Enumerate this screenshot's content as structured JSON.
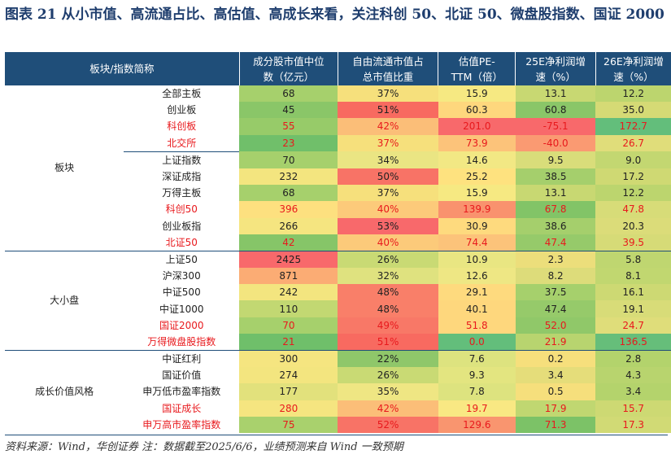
{
  "title": "图表 21   从小市值、高流通占比、高估值、高成长来看，关注科创 50、北证 50、微盘股指数、国证 2000",
  "headers": {
    "name": "板块/指数简称",
    "c1_l1": "成分股市值中位",
    "c1_l2": "数（亿元）",
    "c2_l1": "自由流通市值占",
    "c2_l2": "总市值比重",
    "c3_l1": "估值PE-",
    "c3_l2": "TTM（倍）",
    "c4_l1": "25E净利润增",
    "c4_l2": "速（%）",
    "c5_l1": "26E净利润增",
    "c5_l2": "速（%）"
  },
  "groups": [
    {
      "label": "板块",
      "start": 0,
      "span": 10
    },
    {
      "label": "大小盘",
      "start": 10,
      "span": 6
    },
    {
      "label": "成长价值风格",
      "start": 16,
      "span": 5
    }
  ],
  "rows": [
    {
      "name": "全部主板",
      "red": false,
      "v": [
        "68",
        "37%",
        "15.9",
        "13.1",
        "12.2"
      ],
      "c": [
        "#a6d06c",
        "#f6e07c",
        "#f6e982",
        "#c8d872",
        "#bcd56e"
      ]
    },
    {
      "name": "创业板",
      "red": false,
      "v": [
        "45",
        "51%",
        "60.3",
        "60.8",
        "35.0"
      ],
      "c": [
        "#8ac668",
        "#f86a60",
        "#fed77d",
        "#8ac668",
        "#d5da75"
      ]
    },
    {
      "name": "科创板",
      "red": true,
      "v": [
        "55",
        "42%",
        "201.0",
        "-75.1",
        "172.7"
      ],
      "c": [
        "#97cb69",
        "#fbbe78",
        "#f8696b",
        "#f8696b",
        "#63be7b"
      ]
    },
    {
      "name": "北交所",
      "red": true,
      "v": [
        "23",
        "37%",
        "73.9",
        "-40.0",
        "26.7"
      ],
      "c": [
        "#70bf6a",
        "#f6e07c",
        "#fcc37a",
        "#fa9a72",
        "#e0dd7a"
      ]
    },
    {
      "name": "上证指数",
      "red": false,
      "v": [
        "70",
        "34%",
        "14.6",
        "9.5",
        "9.0"
      ],
      "c": [
        "#a6d06c",
        "#eae583",
        "#f2e884",
        "#d9dd7a",
        "#c3d771"
      ]
    },
    {
      "name": "深证成指",
      "red": false,
      "v": [
        "232",
        "50%",
        "25.2",
        "38.5",
        "17.2"
      ],
      "c": [
        "#f3e57f",
        "#f87366",
        "#fee27f",
        "#a5cf6c",
        "#cfd973"
      ]
    },
    {
      "name": "万得主板",
      "red": false,
      "v": [
        "68",
        "37%",
        "15.9",
        "13.1",
        "12.2"
      ],
      "c": [
        "#a6d06c",
        "#f6e07c",
        "#f6e982",
        "#c8d872",
        "#bcd56e"
      ]
    },
    {
      "name": "科创50",
      "red": true,
      "v": [
        "396",
        "40%",
        "139.9",
        "67.8",
        "47.8"
      ],
      "c": [
        "#fde07f",
        "#fcca7a",
        "#f9926e",
        "#82c467",
        "#d7dc78"
      ]
    },
    {
      "name": "创业板指",
      "red": false,
      "v": [
        "266",
        "53%",
        "30.9",
        "38.6",
        "20.3"
      ],
      "c": [
        "#f5e580",
        "#f8696b",
        "#feda7e",
        "#a5cf6c",
        "#dbdc79"
      ]
    },
    {
      "name": "北证50",
      "red": true,
      "v": [
        "42",
        "40%",
        "74.4",
        "47.4",
        "39.5"
      ],
      "c": [
        "#86c568",
        "#fcca7a",
        "#fcc37a",
        "#96ca6a",
        "#d6db77"
      ]
    },
    {
      "name": "上证50",
      "red": false,
      "v": [
        "2425",
        "26%",
        "10.9",
        "2.3",
        "5.8"
      ],
      "c": [
        "#f8696b",
        "#c9da74",
        "#e9e682",
        "#ecde7b",
        "#bfd670"
      ]
    },
    {
      "name": "沪深300",
      "red": false,
      "v": [
        "871",
        "32%",
        "12.6",
        "8.2",
        "8.1"
      ],
      "c": [
        "#fbac74",
        "#dfe27f",
        "#eee784",
        "#dddc7a",
        "#c1d770"
      ]
    },
    {
      "name": "中证500",
      "red": false,
      "v": [
        "242",
        "48%",
        "29.1",
        "37.5",
        "16.1"
      ],
      "c": [
        "#f3e57f",
        "#f97f69",
        "#feda7e",
        "#a6d06c",
        "#cdd973"
      ]
    },
    {
      "name": "中证1000",
      "red": false,
      "v": [
        "110",
        "48%",
        "40.1",
        "47.4",
        "19.1"
      ],
      "c": [
        "#c2d872",
        "#f97f69",
        "#fed77d",
        "#96ca6a",
        "#d8dc78"
      ]
    },
    {
      "name": "国证2000",
      "red": true,
      "v": [
        "70",
        "49%",
        "51.8",
        "52.0",
        "24.7"
      ],
      "c": [
        "#a6d06c",
        "#f87867",
        "#fed77d",
        "#90c869",
        "#dfdd7a"
      ]
    },
    {
      "name": "万得微盘股指数",
      "red": true,
      "v": [
        "21",
        "51%",
        "0.0",
        "21.9",
        "136.5"
      ],
      "c": [
        "#6fbf6a",
        "#f86a60",
        "#63be7b",
        "#b8d46f",
        "#66be7a"
      ]
    },
    {
      "name": "中证红利",
      "red": false,
      "v": [
        "300",
        "22%",
        "7.6",
        "0.2",
        "2.8"
      ],
      "c": [
        "#f5e580",
        "#8fc76a",
        "#dde37f",
        "#f6df7c",
        "#b3d36c"
      ]
    },
    {
      "name": "国证价值",
      "red": false,
      "v": [
        "274",
        "26%",
        "9.3",
        "3.4",
        "4.3"
      ],
      "c": [
        "#f3e57f",
        "#c9da74",
        "#e3e580",
        "#e5dd7a",
        "#b8d46e"
      ]
    },
    {
      "name": "申万低市盈率指数",
      "red": false,
      "v": [
        "177",
        "35%",
        "7.8",
        "0.5",
        "3.4"
      ],
      "c": [
        "#e2e17c",
        "#efe683",
        "#dde37f",
        "#f6df7c",
        "#b4d36c"
      ]
    },
    {
      "name": "国证成长",
      "red": true,
      "v": [
        "280",
        "42%",
        "19.7",
        "17.9",
        "15.7"
      ],
      "c": [
        "#f5e580",
        "#fbbe78",
        "#f9e883",
        "#c0d771",
        "#cdd973"
      ]
    },
    {
      "name": "申万高市盈率指数",
      "red": true,
      "v": [
        "75",
        "52%",
        "129.6",
        "71.3",
        "17.3"
      ],
      "c": [
        "#a9d16d",
        "#f87366",
        "#f9956f",
        "#7cc267",
        "#d1da75"
      ]
    }
  ],
  "footnote": "资料来源：Wind，华创证券   注：数据截至2025/6/6，业绩预测来自 Wind 一致预期"
}
